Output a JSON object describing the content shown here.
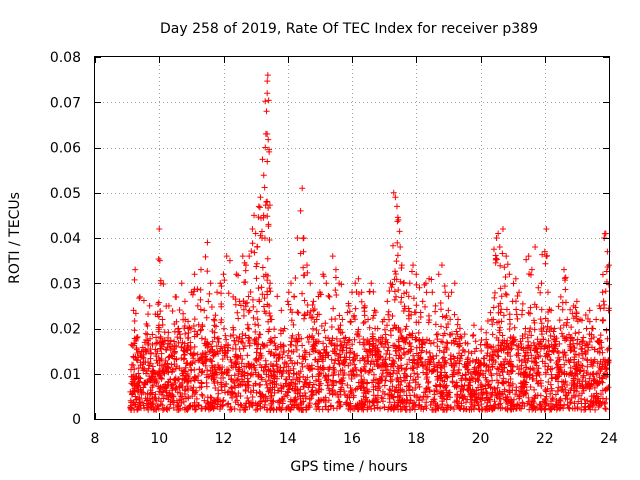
{
  "chart_data": {
    "type": "scatter",
    "title": "Day 258 of 2019, Rate Of TEC Index for receiver p389",
    "xlabel": "GPS time / hours",
    "ylabel": "ROTI / TECUs",
    "xlim": [
      8,
      24
    ],
    "ylim": [
      0,
      0.08
    ],
    "x_ticks": [
      "8",
      "10",
      "12",
      "14",
      "16",
      "18",
      "20",
      "22",
      "24"
    ],
    "y_ticks": [
      "0",
      "0.01",
      "0.02",
      "0.03",
      "0.04",
      "0.05",
      "0.06",
      "0.07",
      "0.08"
    ],
    "grid": true,
    "marker": "plus",
    "color": "#ff0000",
    "series": [
      {
        "name": "ROTI",
        "points": [
          [
            9.1,
            0.006
          ],
          [
            9.15,
            0.012
          ],
          [
            9.2,
            0.024
          ],
          [
            9.25,
            0.033
          ],
          [
            9.3,
            0.018
          ],
          [
            9.35,
            0.009
          ],
          [
            9.4,
            0.027
          ],
          [
            9.5,
            0.015
          ],
          [
            9.55,
            0.008
          ],
          [
            9.6,
            0.021
          ],
          [
            9.7,
            0.025
          ],
          [
            9.8,
            0.01
          ],
          [
            9.9,
            0.018
          ],
          [
            10.0,
            0.042
          ],
          [
            10.02,
            0.035
          ],
          [
            10.05,
            0.03
          ],
          [
            10.1,
            0.022
          ],
          [
            10.2,
            0.012
          ],
          [
            10.3,
            0.025
          ],
          [
            10.4,
            0.016
          ],
          [
            10.5,
            0.027
          ],
          [
            10.6,
            0.02
          ],
          [
            10.7,
            0.03
          ],
          [
            10.8,
            0.026
          ],
          [
            10.9,
            0.02
          ],
          [
            11.0,
            0.028
          ],
          [
            11.1,
            0.032
          ],
          [
            11.2,
            0.025
          ],
          [
            11.3,
            0.033
          ],
          [
            11.4,
            0.024
          ],
          [
            11.5,
            0.039
          ],
          [
            11.6,
            0.03
          ],
          [
            11.7,
            0.022
          ],
          [
            11.8,
            0.028
          ],
          [
            11.9,
            0.03
          ],
          [
            12.0,
            0.032
          ],
          [
            12.1,
            0.036
          ],
          [
            12.2,
            0.035
          ],
          [
            12.3,
            0.027
          ],
          [
            12.4,
            0.032
          ],
          [
            12.5,
            0.026
          ],
          [
            12.6,
            0.036
          ],
          [
            12.7,
            0.034
          ],
          [
            12.8,
            0.036
          ],
          [
            12.9,
            0.042
          ],
          [
            12.95,
            0.045
          ],
          [
            13.0,
            0.041
          ],
          [
            13.05,
            0.038
          ],
          [
            13.1,
            0.047
          ],
          [
            13.15,
            0.049
          ],
          [
            13.2,
            0.04
          ],
          [
            13.25,
            0.045
          ],
          [
            13.3,
            0.06
          ],
          [
            13.32,
            0.063
          ],
          [
            13.34,
            0.068
          ],
          [
            13.36,
            0.072
          ],
          [
            13.38,
            0.076
          ],
          [
            13.4,
            0.043
          ],
          [
            13.45,
            0.03
          ],
          [
            13.5,
            0.022
          ],
          [
            13.6,
            0.018
          ],
          [
            13.7,
            0.014
          ],
          [
            13.8,
            0.024
          ],
          [
            13.9,
            0.02
          ],
          [
            14.0,
            0.026
          ],
          [
            14.1,
            0.03
          ],
          [
            14.2,
            0.027
          ],
          [
            14.3,
            0.04
          ],
          [
            14.4,
            0.046
          ],
          [
            14.45,
            0.051
          ],
          [
            14.5,
            0.04
          ],
          [
            14.6,
            0.034
          ],
          [
            14.7,
            0.03
          ],
          [
            14.8,
            0.026
          ],
          [
            14.9,
            0.022
          ],
          [
            15.0,
            0.028
          ],
          [
            15.1,
            0.032
          ],
          [
            15.2,
            0.03
          ],
          [
            15.3,
            0.027
          ],
          [
            15.4,
            0.036
          ],
          [
            15.5,
            0.033
          ],
          [
            15.6,
            0.03
          ],
          [
            15.7,
            0.022
          ],
          [
            15.8,
            0.018
          ],
          [
            15.9,
            0.025
          ],
          [
            16.0,
            0.028
          ],
          [
            16.1,
            0.03
          ],
          [
            16.2,
            0.031
          ],
          [
            16.3,
            0.028
          ],
          [
            16.4,
            0.025
          ],
          [
            16.5,
            0.022
          ],
          [
            16.6,
            0.03
          ],
          [
            16.7,
            0.024
          ],
          [
            16.8,
            0.02
          ],
          [
            16.9,
            0.018
          ],
          [
            17.0,
            0.022
          ],
          [
            17.1,
            0.026
          ],
          [
            17.2,
            0.03
          ],
          [
            17.3,
            0.05
          ],
          [
            17.35,
            0.049
          ],
          [
            17.4,
            0.047
          ],
          [
            17.45,
            0.044
          ],
          [
            17.5,
            0.038
          ],
          [
            17.55,
            0.034
          ],
          [
            17.6,
            0.03
          ],
          [
            17.7,
            0.028
          ],
          [
            17.8,
            0.03
          ],
          [
            17.9,
            0.034
          ],
          [
            18.0,
            0.032
          ],
          [
            18.1,
            0.029
          ],
          [
            18.2,
            0.026
          ],
          [
            18.3,
            0.03
          ],
          [
            18.4,
            0.031
          ],
          [
            18.5,
            0.028
          ],
          [
            18.6,
            0.025
          ],
          [
            18.7,
            0.032
          ],
          [
            18.8,
            0.034
          ],
          [
            18.9,
            0.028
          ],
          [
            19.0,
            0.024
          ],
          [
            19.1,
            0.028
          ],
          [
            19.2,
            0.03
          ],
          [
            19.3,
            0.022
          ],
          [
            19.4,
            0.014
          ],
          [
            19.5,
            0.012
          ],
          [
            19.6,
            0.011
          ],
          [
            19.7,
            0.01
          ],
          [
            19.8,
            0.011
          ],
          [
            19.9,
            0.009
          ],
          [
            20.0,
            0.01
          ],
          [
            20.1,
            0.012
          ],
          [
            20.2,
            0.014
          ],
          [
            20.3,
            0.016
          ],
          [
            20.4,
            0.022
          ],
          [
            20.5,
            0.04
          ],
          [
            20.55,
            0.041
          ],
          [
            20.6,
            0.038
          ],
          [
            20.7,
            0.042
          ],
          [
            20.8,
            0.036
          ],
          [
            20.9,
            0.032
          ],
          [
            21.0,
            0.026
          ],
          [
            21.1,
            0.031
          ],
          [
            21.2,
            0.028
          ],
          [
            21.3,
            0.024
          ],
          [
            21.4,
            0.02
          ],
          [
            21.5,
            0.036
          ],
          [
            21.6,
            0.033
          ],
          [
            21.7,
            0.038
          ],
          [
            21.8,
            0.029
          ],
          [
            21.9,
            0.03
          ],
          [
            22.0,
            0.037
          ],
          [
            22.05,
            0.042
          ],
          [
            22.1,
            0.028
          ],
          [
            22.2,
            0.024
          ],
          [
            22.3,
            0.02
          ],
          [
            22.4,
            0.015
          ],
          [
            22.5,
            0.027
          ],
          [
            22.6,
            0.033
          ],
          [
            22.7,
            0.022
          ],
          [
            22.8,
            0.018
          ],
          [
            22.9,
            0.025
          ],
          [
            23.0,
            0.026
          ],
          [
            23.1,
            0.022
          ],
          [
            23.2,
            0.018
          ],
          [
            23.3,
            0.02
          ],
          [
            23.4,
            0.024
          ],
          [
            23.5,
            0.02
          ],
          [
            23.6,
            0.022
          ],
          [
            23.7,
            0.025
          ],
          [
            23.8,
            0.028
          ],
          [
            23.85,
            0.04
          ],
          [
            23.9,
            0.041
          ],
          [
            23.95,
            0.037
          ],
          [
            24.0,
            0.034
          ]
        ]
      }
    ],
    "dense_band": {
      "x_range": [
        9.1,
        24.0
      ],
      "y_range": [
        0.002,
        0.018
      ],
      "seed": 258
    }
  }
}
